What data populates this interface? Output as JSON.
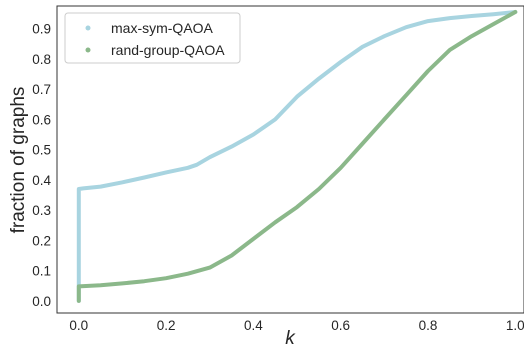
{
  "chart_data": {
    "type": "line",
    "xlabel": "k",
    "ylabel": "fraction of graphs",
    "xlim": [
      -0.05,
      1.02
    ],
    "ylim": [
      -0.04,
      0.975
    ],
    "x_ticks": [
      "0.0",
      "0.2",
      "0.4",
      "0.6",
      "0.8",
      "1.0"
    ],
    "y_ticks": [
      "0.0",
      "0.1",
      "0.2",
      "0.3",
      "0.4",
      "0.5",
      "0.6",
      "0.7",
      "0.8",
      "0.9"
    ],
    "grid": false,
    "legend_position": "top-left",
    "series": [
      {
        "name": "max-sym-QAOA",
        "color": "#a8d4e0",
        "points": [
          [
            0.0,
            0.0
          ],
          [
            0.0,
            0.37
          ],
          [
            0.01,
            0.372
          ],
          [
            0.05,
            0.378
          ],
          [
            0.1,
            0.392
          ],
          [
            0.15,
            0.408
          ],
          [
            0.2,
            0.425
          ],
          [
            0.25,
            0.44
          ],
          [
            0.27,
            0.45
          ],
          [
            0.3,
            0.475
          ],
          [
            0.35,
            0.51
          ],
          [
            0.4,
            0.55
          ],
          [
            0.45,
            0.6
          ],
          [
            0.5,
            0.675
          ],
          [
            0.55,
            0.735
          ],
          [
            0.6,
            0.79
          ],
          [
            0.65,
            0.84
          ],
          [
            0.7,
            0.875
          ],
          [
            0.75,
            0.905
          ],
          [
            0.8,
            0.925
          ],
          [
            0.85,
            0.935
          ],
          [
            0.9,
            0.942
          ],
          [
            0.95,
            0.948
          ],
          [
            1.0,
            0.955
          ]
        ]
      },
      {
        "name": "rand-group-QAOA",
        "color": "#8bb88a",
        "points": [
          [
            0.0,
            0.0
          ],
          [
            0.0,
            0.048
          ],
          [
            0.05,
            0.052
          ],
          [
            0.1,
            0.058
          ],
          [
            0.15,
            0.065
          ],
          [
            0.2,
            0.075
          ],
          [
            0.25,
            0.09
          ],
          [
            0.3,
            0.11
          ],
          [
            0.35,
            0.15
          ],
          [
            0.4,
            0.205
          ],
          [
            0.45,
            0.26
          ],
          [
            0.5,
            0.31
          ],
          [
            0.55,
            0.37
          ],
          [
            0.6,
            0.44
          ],
          [
            0.65,
            0.52
          ],
          [
            0.7,
            0.6
          ],
          [
            0.75,
            0.68
          ],
          [
            0.8,
            0.76
          ],
          [
            0.85,
            0.83
          ],
          [
            0.9,
            0.875
          ],
          [
            0.95,
            0.915
          ],
          [
            1.0,
            0.955
          ]
        ]
      }
    ]
  }
}
